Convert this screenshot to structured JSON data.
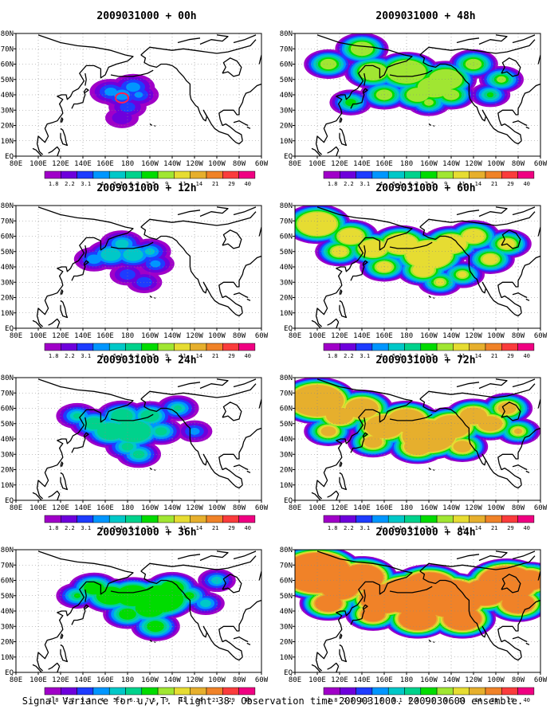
{
  "caption": "Signal Variance for u,v,T. Flight 38. Observation time 2009031000. 2009030600 ensemble.",
  "longitude_ticks": [
    "80E",
    "100E",
    "120E",
    "140E",
    "160E",
    "180",
    "160W",
    "140W",
    "120W",
    "100W",
    "80W",
    "60W"
  ],
  "latitude_ticks": [
    "EQ",
    "10N",
    "20N",
    "30N",
    "40N",
    "50N",
    "60N",
    "70N",
    "80N"
  ],
  "colorbar": {
    "labels": [
      "1.8",
      "2.2",
      "3.1",
      "4",
      "5.1",
      "6.3",
      "7.5",
      "9",
      "11",
      "14",
      "21",
      "29",
      "40"
    ],
    "colors": [
      "#a000c8",
      "#6e00dc",
      "#1e3cff",
      "#0096ff",
      "#00c8c8",
      "#00d28c",
      "#00dc00",
      "#a0e632",
      "#e6dc32",
      "#e6af2d",
      "#f08228",
      "#fa3c3c",
      "#f00082"
    ]
  },
  "panels": [
    {
      "title": "2009031000 + 00h",
      "hour": 0,
      "marker": true,
      "blobs": [
        [
          185,
          45,
          0.95
        ],
        [
          175,
          40,
          1.0
        ],
        [
          165,
          42,
          0.9
        ],
        [
          190,
          40,
          0.8
        ],
        [
          180,
          32,
          0.7
        ],
        [
          175,
          25,
          0.5
        ]
      ]
    },
    {
      "title": "2009031000 + 48h",
      "hour": 48,
      "blobs": [
        [
          180,
          55,
          2.0
        ],
        [
          150,
          55,
          1.6
        ],
        [
          215,
          50,
          1.8
        ],
        [
          190,
          40,
          1.4
        ],
        [
          205,
          45,
          1.8
        ],
        [
          220,
          40,
          1.2
        ],
        [
          140,
          70,
          1.4
        ],
        [
          110,
          60,
          1.2
        ],
        [
          240,
          60,
          1.2
        ],
        [
          255,
          40,
          0.8
        ],
        [
          265,
          50,
          1.0
        ],
        [
          160,
          40,
          1.2
        ],
        [
          130,
          35,
          0.9
        ],
        [
          200,
          35,
          1.0
        ]
      ]
    },
    {
      "title": "2009031000 + 12h",
      "hour": 12,
      "blobs": [
        [
          165,
          48,
          1.2
        ],
        [
          185,
          48,
          1.2
        ],
        [
          175,
          55,
          1.0
        ],
        [
          200,
          50,
          0.9
        ],
        [
          180,
          35,
          0.6
        ],
        [
          205,
          42,
          0.7
        ],
        [
          150,
          45,
          0.8
        ],
        [
          195,
          30,
          0.6
        ]
      ]
    },
    {
      "title": "2009031000 + 60h",
      "hour": 60,
      "blobs": [
        [
          100,
          68,
          2.0
        ],
        [
          200,
          48,
          2.3
        ],
        [
          175,
          55,
          1.8
        ],
        [
          150,
          52,
          1.6
        ],
        [
          220,
          55,
          1.7
        ],
        [
          130,
          60,
          1.5
        ],
        [
          195,
          38,
          1.4
        ],
        [
          240,
          60,
          1.4
        ],
        [
          255,
          45,
          1.2
        ],
        [
          270,
          55,
          1.2
        ],
        [
          160,
          40,
          1.2
        ],
        [
          120,
          50,
          1.2
        ],
        [
          230,
          35,
          1.0
        ],
        [
          210,
          30,
          1.0
        ]
      ]
    },
    {
      "title": "2009031000 + 24h",
      "hour": 24,
      "blobs": [
        [
          185,
          45,
          1.8
        ],
        [
          165,
          45,
          1.5
        ],
        [
          175,
          55,
          1.3
        ],
        [
          200,
          55,
          1.2
        ],
        [
          150,
          50,
          1.2
        ],
        [
          190,
          30,
          1.0
        ],
        [
          210,
          45,
          1.0
        ],
        [
          135,
          55,
          0.9
        ],
        [
          225,
          60,
          0.9
        ],
        [
          180,
          35,
          1.0
        ],
        [
          240,
          45,
          0.6
        ]
      ]
    },
    {
      "title": "2009031000 + 72h",
      "hour": 72,
      "blobs": [
        [
          100,
          65,
          2.6
        ],
        [
          200,
          42,
          2.6
        ],
        [
          160,
          48,
          2.0
        ],
        [
          180,
          52,
          2.0
        ],
        [
          220,
          48,
          2.0
        ],
        [
          140,
          60,
          1.8
        ],
        [
          120,
          55,
          1.6
        ],
        [
          240,
          55,
          1.6
        ],
        [
          255,
          50,
          1.5
        ],
        [
          270,
          60,
          1.3
        ],
        [
          190,
          35,
          1.6
        ],
        [
          230,
          35,
          1.3
        ],
        [
          150,
          38,
          1.3
        ],
        [
          110,
          45,
          1.2
        ],
        [
          280,
          45,
          1.0
        ]
      ]
    },
    {
      "title": "2009031000 + 36h",
      "hour": 36,
      "blobs": [
        [
          210,
          48,
          2.2
        ],
        [
          185,
          50,
          1.8
        ],
        [
          165,
          50,
          1.6
        ],
        [
          200,
          42,
          1.6
        ],
        [
          220,
          55,
          1.4
        ],
        [
          150,
          55,
          1.3
        ],
        [
          205,
          30,
          1.2
        ],
        [
          235,
          50,
          1.0
        ],
        [
          135,
          50,
          0.9
        ],
        [
          180,
          38,
          1.2
        ],
        [
          250,
          45,
          0.7
        ],
        [
          260,
          60,
          0.7
        ]
      ]
    },
    {
      "title": "2009031000 + 84h",
      "hour": 84,
      "blobs": [
        [
          100,
          65,
          3.2
        ],
        [
          220,
          48,
          3.0
        ],
        [
          180,
          50,
          2.8
        ],
        [
          200,
          55,
          2.6
        ],
        [
          160,
          48,
          2.4
        ],
        [
          270,
          58,
          2.8
        ],
        [
          140,
          62,
          2.2
        ],
        [
          120,
          55,
          2.0
        ],
        [
          250,
          52,
          2.2
        ],
        [
          230,
          35,
          2.0
        ],
        [
          190,
          35,
          2.0
        ],
        [
          280,
          45,
          1.8
        ],
        [
          110,
          45,
          1.6
        ],
        [
          150,
          38,
          1.5
        ],
        [
          290,
          60,
          1.8
        ]
      ]
    }
  ]
}
